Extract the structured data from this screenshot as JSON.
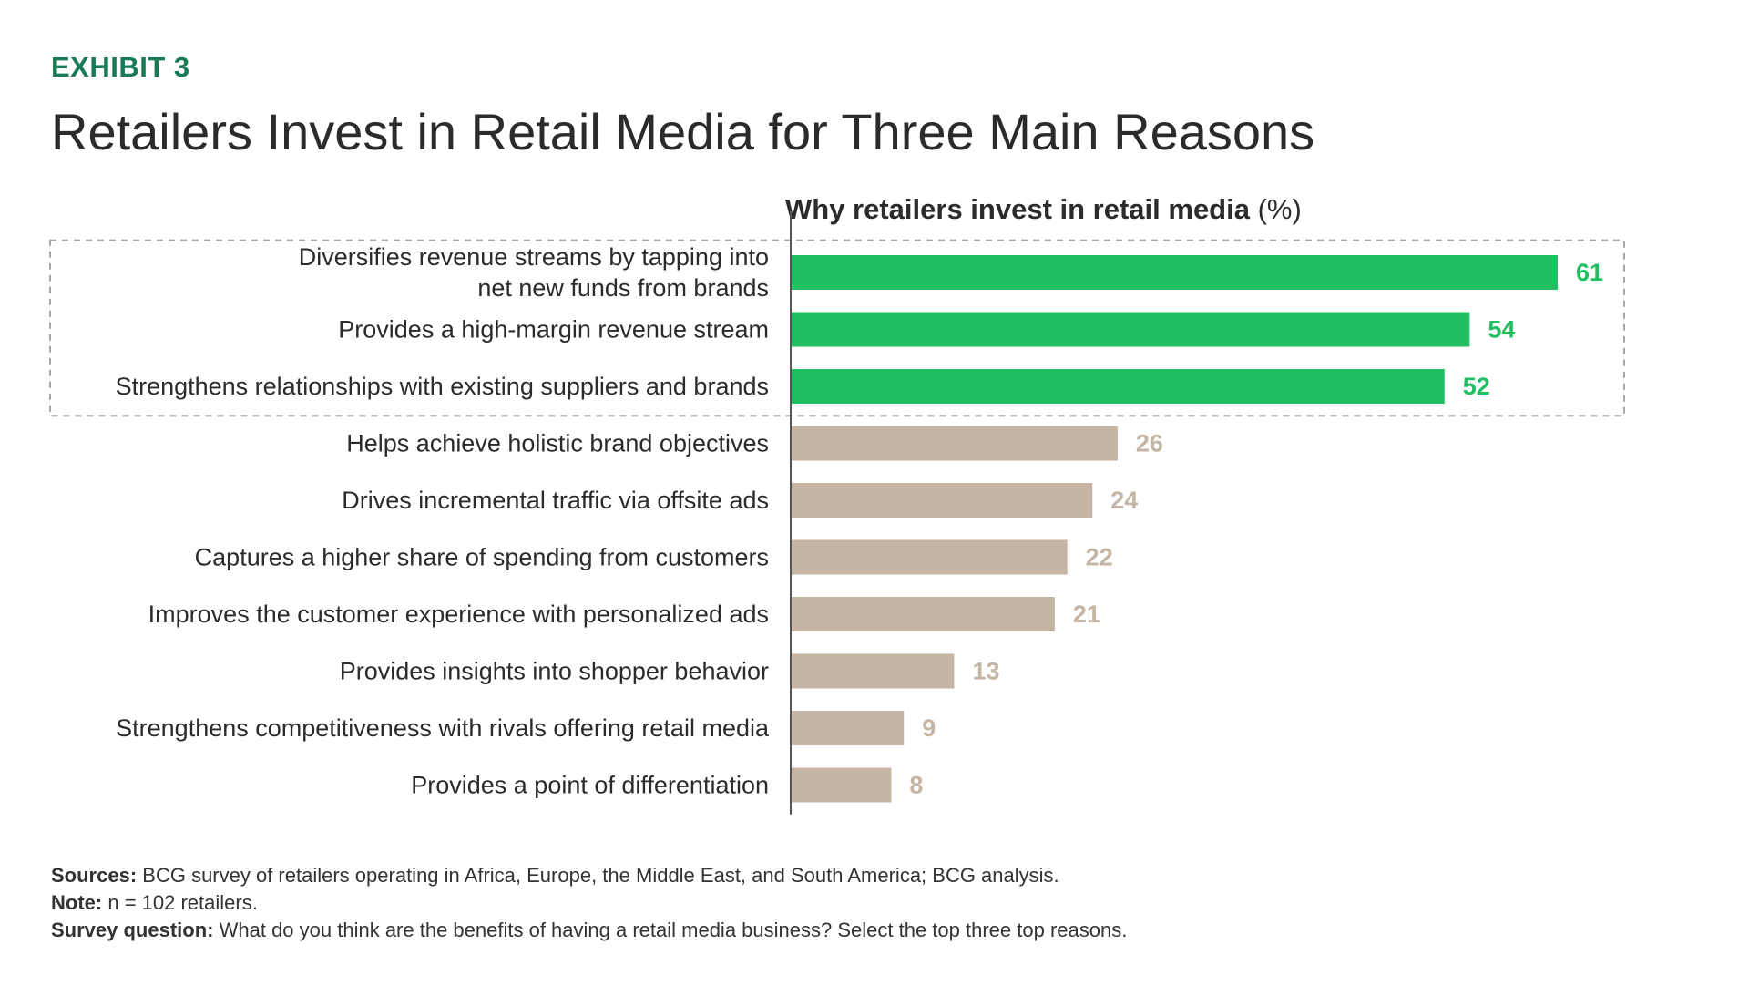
{
  "exhibit_label": "EXHIBIT 3",
  "title": "Retailers Invest in Retail Media for Three Main Reasons",
  "footer": {
    "sources_label": "Sources:",
    "sources_text": "BCG survey of retailers operating in Africa, Europe, the Middle East, and South America; BCG analysis.",
    "note_label": "Note:",
    "note_text": "n = 102 retailers.",
    "survey_label": "Survey question:",
    "survey_text": "What do you think are the benefits of having a retail media business? Select the top three top reasons."
  },
  "colors": {
    "highlight": "#21bf61",
    "other": "#c4b5a5",
    "exhibit": "#197a56",
    "text": "#2b2b2b"
  },
  "chart_data": {
    "type": "bar",
    "orientation": "horizontal",
    "title": "Why retailers invest in retail media",
    "title_unit": "(%)",
    "categories": [
      [
        "Diversifies revenue streams by tapping into",
        "net new funds from brands"
      ],
      [
        "Provides a high-margin revenue stream"
      ],
      [
        "Strengthens relationships with existing suppliers and brands"
      ],
      [
        "Helps achieve holistic brand objectives"
      ],
      [
        "Drives incremental traffic via offsite ads"
      ],
      [
        "Captures a higher share of spending from customers"
      ],
      [
        "Improves the customer experience with personalized ads"
      ],
      [
        "Provides insights into shopper behavior"
      ],
      [
        "Strengthens competitiveness with rivals offering retail media"
      ],
      [
        "Provides a point of differentiation"
      ]
    ],
    "values": [
      61,
      54,
      52,
      26,
      24,
      22,
      21,
      13,
      9,
      8
    ],
    "highlighted_count": 3,
    "xlim": [
      0,
      65
    ],
    "data_labels": true,
    "highlight_box": "dashed box around top three reasons"
  }
}
